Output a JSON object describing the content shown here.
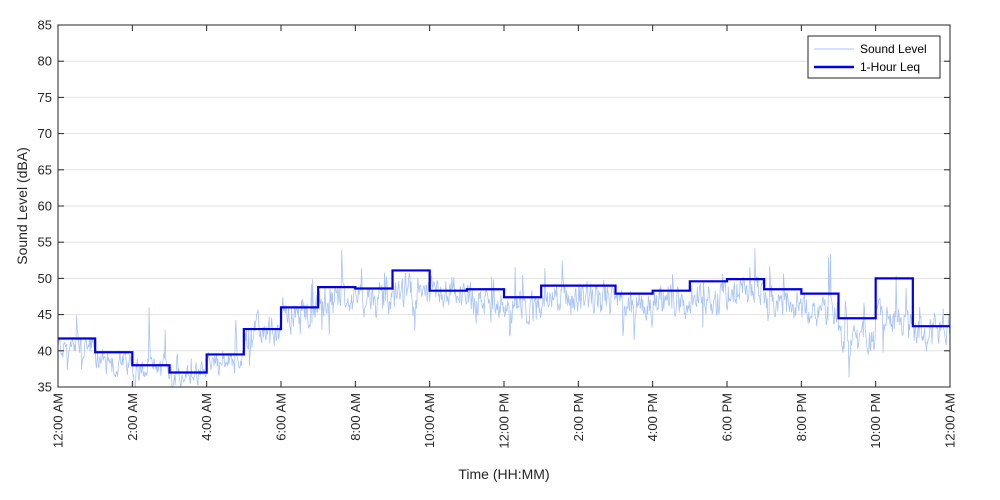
{
  "chart_data": {
    "type": "line",
    "title": "",
    "xlabel": "Time (HH:MM)",
    "ylabel": "Sound Level (dBA)",
    "xlim": [
      0,
      24
    ],
    "ylim": [
      35,
      85
    ],
    "yticks": [
      35,
      40,
      45,
      50,
      55,
      60,
      65,
      70,
      75,
      80,
      85
    ],
    "xtick_hours": [
      0,
      2,
      4,
      6,
      8,
      10,
      12,
      14,
      16,
      18,
      20,
      22,
      24
    ],
    "xtick_labels": [
      "12:00 AM",
      "2:00 AM",
      "4:00 AM",
      "6:00 AM",
      "8:00 AM",
      "10:00 AM",
      "12:00 PM",
      "2:00 PM",
      "4:00 PM",
      "6:00 PM",
      "8:00 PM",
      "10:00 PM",
      "12:00 AM"
    ],
    "grid": "horizontal",
    "legend_position": "top-right",
    "series": [
      {
        "name": "Sound Level",
        "color": "#a9c4f5",
        "style": "thin-line",
        "approx_hourly_mean_dBA": [
          40.5,
          38.5,
          37.5,
          36.5,
          38.5,
          42.5,
          45,
          47,
          47,
          48,
          47.5,
          46.5,
          45.5,
          47,
          47,
          46.5,
          47,
          47.5,
          48,
          46.5,
          45.5,
          42,
          45,
          42.5
        ]
      },
      {
        "name": "1-Hour Leq",
        "color": "#0000e6",
        "style": "step",
        "hours": [
          0,
          1,
          2,
          3,
          4,
          5,
          6,
          7,
          8,
          9,
          10,
          11,
          12,
          13,
          14,
          15,
          16,
          17,
          18,
          19,
          20,
          21,
          22,
          23
        ],
        "values": [
          41.7,
          39.8,
          38.0,
          37.0,
          39.5,
          43.0,
          46.0,
          48.8,
          48.6,
          51.1,
          48.3,
          48.5,
          47.4,
          49.0,
          49.0,
          47.9,
          48.3,
          49.6,
          49.9,
          48.5,
          47.9,
          44.5,
          50.0,
          43.4
        ]
      }
    ]
  }
}
